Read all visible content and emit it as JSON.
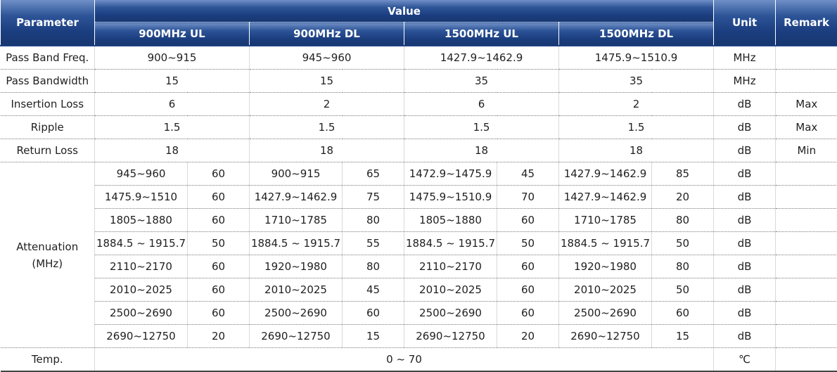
{
  "header": {
    "parameter": "Parameter",
    "value": "Value",
    "unit": "Unit",
    "remark": "Remark",
    "bands": [
      "900MHz UL",
      "900MHz DL",
      "1500MHz UL",
      "1500MHz DL"
    ]
  },
  "rows": [
    {
      "parameter": "Pass Band Freq.",
      "values": [
        "900~915",
        "945~960",
        "1427.9~1462.9",
        "1475.9~1510.9"
      ],
      "unit": "MHz",
      "remark": ""
    },
    {
      "parameter": "Pass Bandwidth",
      "values": [
        "15",
        "15",
        "35",
        "35"
      ],
      "unit": "MHz",
      "remark": ""
    },
    {
      "parameter": "Insertion Loss",
      "values": [
        "6",
        "2",
        "6",
        "2"
      ],
      "unit": "dB",
      "remark": "Max"
    },
    {
      "parameter": "Ripple",
      "values": [
        "1.5",
        "1.5",
        "1.5",
        "1.5"
      ],
      "unit": "dB",
      "remark": "Max"
    },
    {
      "parameter": "Return Loss",
      "values": [
        "18",
        "18",
        "18",
        "18"
      ],
      "unit": "dB",
      "remark": "Min"
    }
  ],
  "attenuation": {
    "label_line1": "Attenuation",
    "label_line2": "(MHz)",
    "rows": [
      {
        "cells": [
          [
            "945~960",
            "60"
          ],
          [
            "900~915",
            "65"
          ],
          [
            "1472.9~1475.9",
            "45"
          ],
          [
            "1427.9~1462.9",
            "85"
          ]
        ],
        "unit": "dB"
      },
      {
        "cells": [
          [
            "1475.9~1510",
            "60"
          ],
          [
            "1427.9~1462.9",
            "75"
          ],
          [
            "1475.9~1510.9",
            "70"
          ],
          [
            "1427.9~1462.9",
            "20"
          ]
        ],
        "unit": "dB"
      },
      {
        "cells": [
          [
            "1805~1880",
            "60"
          ],
          [
            "1710~1785",
            "80"
          ],
          [
            "1805~1880",
            "60"
          ],
          [
            "1710~1785",
            "80"
          ]
        ],
        "unit": "dB"
      },
      {
        "cells": [
          [
            "1884.5 ~ 1915.7",
            "50"
          ],
          [
            "1884.5 ~ 1915.7",
            "55"
          ],
          [
            "1884.5 ~ 1915.7",
            "50"
          ],
          [
            "1884.5 ~ 1915.7",
            "50"
          ]
        ],
        "unit": "dB"
      },
      {
        "cells": [
          [
            "2110~2170",
            "60"
          ],
          [
            "1920~1980",
            "80"
          ],
          [
            "2110~2170",
            "60"
          ],
          [
            "1920~1980",
            "80"
          ]
        ],
        "unit": "dB"
      },
      {
        "cells": [
          [
            "2010~2025",
            "60"
          ],
          [
            "2010~2025",
            "45"
          ],
          [
            "2010~2025",
            "60"
          ],
          [
            "2010~2025",
            "50"
          ]
        ],
        "unit": "dB"
      },
      {
        "cells": [
          [
            "2500~2690",
            "60"
          ],
          [
            "2500~2690",
            "60"
          ],
          [
            "2500~2690",
            "60"
          ],
          [
            "2500~2690",
            "60"
          ]
        ],
        "unit": "dB"
      },
      {
        "cells": [
          [
            "2690~12750",
            "20"
          ],
          [
            "2690~12750",
            "15"
          ],
          [
            "2690~12750",
            "20"
          ],
          [
            "2690~12750",
            "15"
          ]
        ],
        "unit": "dB"
      }
    ]
  },
  "temp": {
    "parameter": "Temp.",
    "value": "0 ~ 70",
    "unit": "℃",
    "remark": ""
  }
}
